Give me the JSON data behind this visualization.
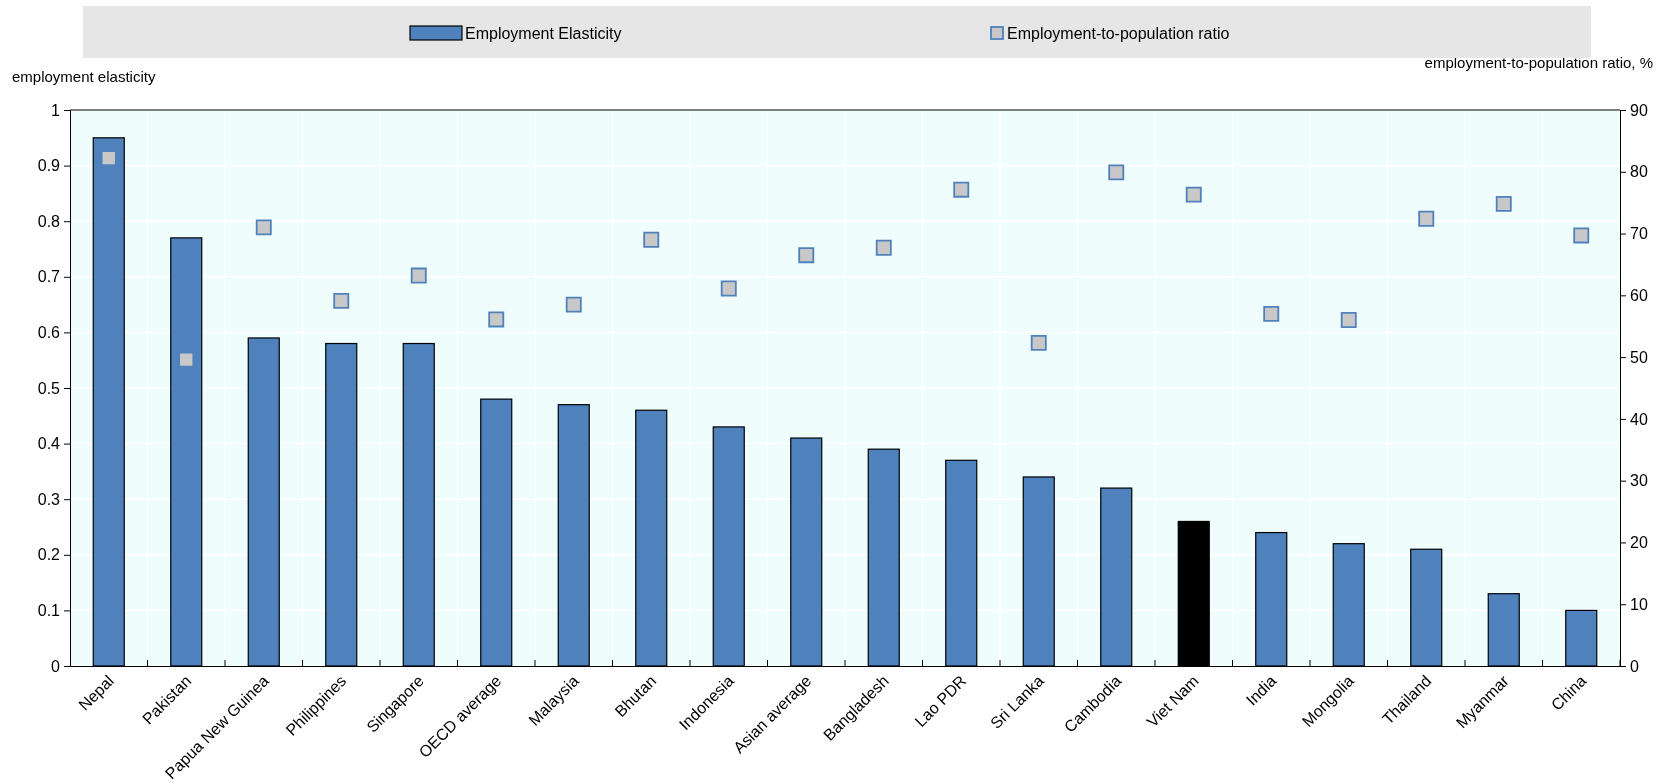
{
  "chart_data": {
    "type": "bar",
    "categories": [
      "Nepal",
      "Pakistan",
      "Papua New Guinea",
      "Philippines",
      "Singapore",
      "OECD average",
      "Malaysia",
      "Bhutan",
      "Indonesia",
      "Asian average",
      "Bangladesh",
      "Lao PDR",
      "Sri Lanka",
      "Cambodia",
      "Viet Nam",
      "India",
      "Mongolia",
      "Thailand",
      "Myanmar",
      "China"
    ],
    "series": [
      {
        "name": "Employment Elasticity",
        "color": "#4f81bd",
        "colors": [
          "#4f81bd",
          "#4f81bd",
          "#4f81bd",
          "#4f81bd",
          "#4f81bd",
          "#4f81bd",
          "#4f81bd",
          "#4f81bd",
          "#4f81bd",
          "#4f81bd",
          "#4f81bd",
          "#4f81bd",
          "#4f81bd",
          "#4f81bd",
          "#000000",
          "#4f81bd",
          "#4f81bd",
          "#4f81bd",
          "#4f81bd",
          "#4f81bd"
        ],
        "values": [
          0.95,
          0.77,
          0.59,
          0.58,
          0.58,
          0.48,
          0.47,
          0.46,
          0.43,
          0.41,
          0.39,
          0.37,
          0.34,
          0.32,
          0.26,
          0.24,
          0.22,
          0.21,
          0.13,
          0.1
        ]
      },
      {
        "name": "Employment-to-population ratio",
        "type": "scatter",
        "axis": "y2",
        "color": "#c8c8c8",
        "values": [
          82.2,
          49.6,
          71.0,
          59.1,
          63.2,
          56.1,
          58.5,
          69.0,
          61.1,
          66.5,
          67.7,
          77.1,
          52.3,
          79.9,
          76.3,
          57.0,
          56.0,
          72.4,
          74.8,
          69.7
        ]
      }
    ],
    "ylabel": "employment elasticity",
    "y2label": "employment-to-population ratio, %",
    "ylim": [
      0,
      1
    ],
    "yticks": [
      0,
      0.1,
      0.2,
      0.3,
      0.4,
      0.5,
      0.6,
      0.7,
      0.8,
      0.9,
      1
    ],
    "y2lim": [
      0,
      90
    ],
    "y2ticks": [
      0,
      10,
      20,
      30,
      40,
      50,
      60,
      70,
      80,
      90
    ],
    "grid": true,
    "legend": "top",
    "marker": "square"
  }
}
